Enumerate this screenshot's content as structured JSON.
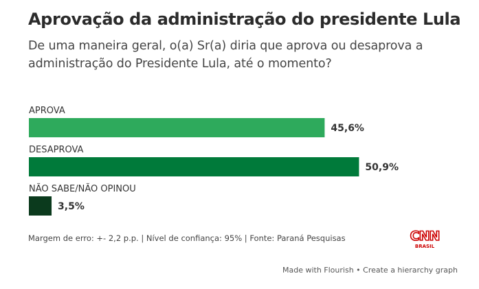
{
  "chart_data": {
    "type": "bar",
    "orientation": "horizontal",
    "title": "Aprovação da administração do presidente Lula",
    "subtitle": "De uma maneira geral, o(a) Sr(a) diria que aprova ou desaprova a administração do Presidente Lula, até o momento?",
    "categories": [
      "APROVA",
      "DESAPROVA",
      "NÃO SABE/NÃO OPINOU"
    ],
    "values": [
      45.6,
      50.9,
      3.5
    ],
    "value_labels": [
      "45,6%",
      "50,9%",
      "3,5%"
    ],
    "colors": [
      "#2eaa5c",
      "#007a3a",
      "#0b3a1d"
    ],
    "xlim": [
      0,
      57
    ],
    "unit": "%"
  },
  "footnote": "Margem de erro: +- 2,2 p.p. | Nível de confiança: 95% | Fonte: Paraná Pesquisas",
  "logo": {
    "brand": "CNN",
    "sub": "BRASIL",
    "color": "#cc0000"
  },
  "credit": "Made with Flourish • Create a hierarchy graph"
}
